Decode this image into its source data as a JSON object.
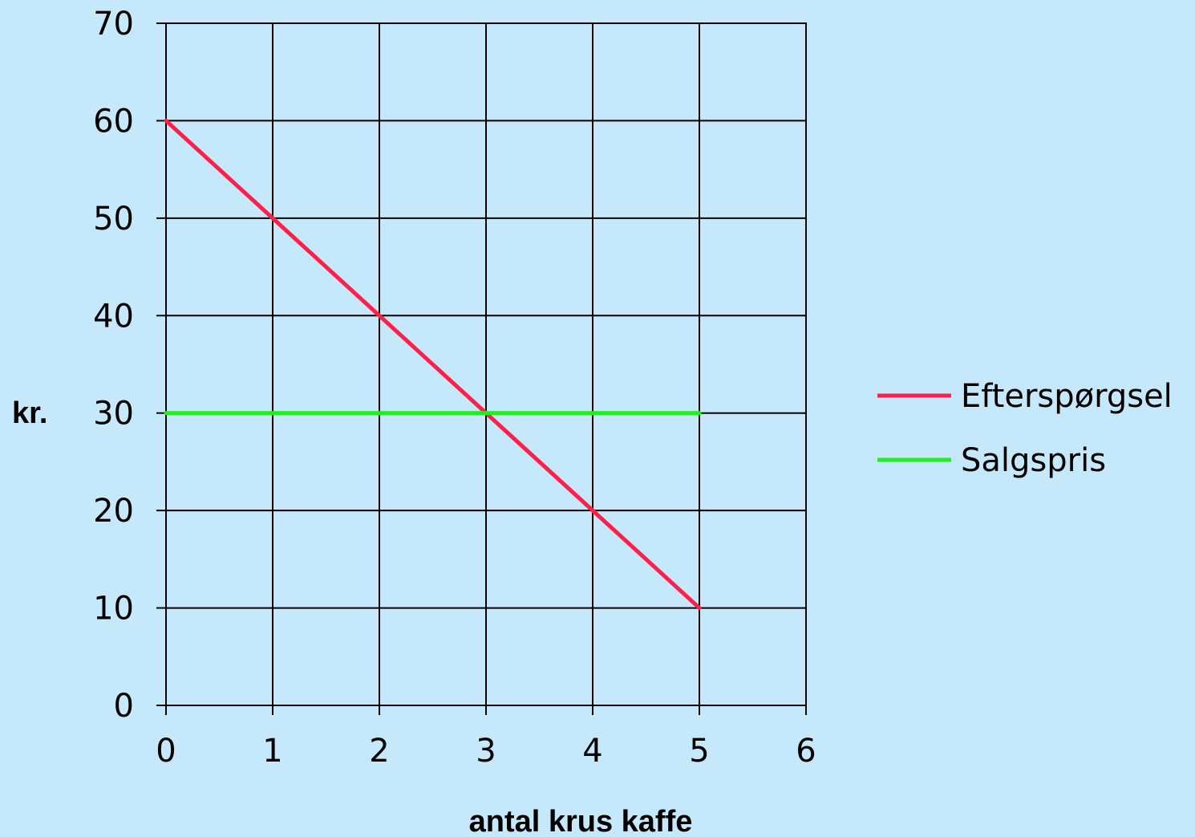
{
  "chart_data": {
    "type": "line",
    "title": "",
    "xlabel": "antal krus kaffe",
    "ylabel": "kr.",
    "xlim": [
      0,
      6
    ],
    "ylim": [
      0,
      70
    ],
    "xticks": [
      0,
      1,
      2,
      3,
      4,
      5,
      6
    ],
    "yticks": [
      0,
      10,
      20,
      30,
      40,
      50,
      60,
      70
    ],
    "grid": true,
    "legend_position": "right",
    "background": "#c5e9fb",
    "series": [
      {
        "name": "Efterspørgsel",
        "color": "#ff1f4b",
        "x": [
          0,
          1,
          2,
          3,
          4,
          5
        ],
        "y": [
          60,
          50,
          40,
          30,
          20,
          10
        ]
      },
      {
        "name": "Salgspris",
        "color": "#1ef01e",
        "x": [
          0,
          5
        ],
        "y": [
          30,
          30
        ]
      }
    ]
  }
}
